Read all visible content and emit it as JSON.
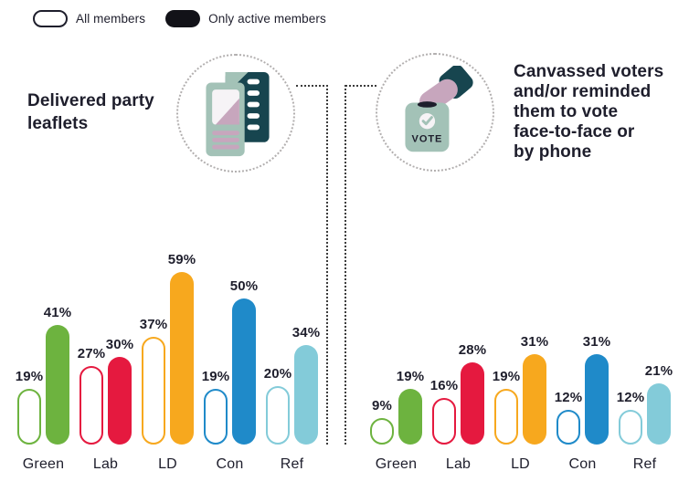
{
  "legend": {
    "items": [
      {
        "label": "All members",
        "variant": "outline"
      },
      {
        "label": "Only active members",
        "variant": "filled"
      }
    ]
  },
  "panels": {
    "left": {
      "title": "Delivered party leaflets",
      "title_lines": [
        "Delivered party",
        "leaflets"
      ],
      "icon": "leaflet-icon"
    },
    "right": {
      "title": "Canvassed voters and/or reminded them to vote face-to-face or by phone",
      "title_lines": [
        "Canvassed voters",
        "and/or reminded",
        "them to vote",
        "face-to-face or",
        "by phone"
      ],
      "icon": "ballot-box-hand-icon"
    }
  },
  "icons": {
    "vote_label": "VOTE"
  },
  "colors": {
    "text": "#1E1E2C",
    "legend_fill": "#121218",
    "dot_line": "#3c3c3c",
    "circle_dot": "#b2afaf",
    "icon_dark_teal": "#17454F",
    "icon_sage": "#A3C2B7",
    "icon_mauve": "#C7A6BD",
    "icon_photo": "#F6F3F6"
  },
  "party_colors": [
    {
      "party": "Green",
      "hex": "#6DB33F"
    },
    {
      "party": "Lab",
      "hex": "#E5193F"
    },
    {
      "party": "LD",
      "hex": "#F7A81E"
    },
    {
      "party": "Con",
      "hex": "#1F8AC9"
    },
    {
      "party": "Ref",
      "hex": "#83CBD9"
    }
  ],
  "chart_data": [
    {
      "type": "bar",
      "title": "Delivered party leaflets",
      "categories": [
        "Green",
        "Lab",
        "LD",
        "Con",
        "Ref"
      ],
      "series": [
        {
          "name": "All members",
          "style": "outline",
          "values": [
            19,
            27,
            37,
            19,
            20
          ]
        },
        {
          "name": "Only active members",
          "style": "filled",
          "values": [
            41,
            30,
            59,
            50,
            34
          ]
        }
      ],
      "unit": "%",
      "value_labels": true,
      "axes": "none",
      "ylim": [
        0,
        60
      ],
      "legend_position": "top-left"
    },
    {
      "type": "bar",
      "title": "Canvassed voters and/or reminded them to vote face-to-face or by phone",
      "categories": [
        "Green",
        "Lab",
        "LD",
        "Con",
        "Ref"
      ],
      "series": [
        {
          "name": "All members",
          "style": "outline",
          "values": [
            9,
            16,
            19,
            12,
            12
          ]
        },
        {
          "name": "Only active members",
          "style": "filled",
          "values": [
            19,
            28,
            31,
            31,
            21
          ]
        }
      ],
      "unit": "%",
      "value_labels": true,
      "axes": "none",
      "ylim": [
        0,
        60
      ],
      "legend_position": "top-left"
    }
  ]
}
